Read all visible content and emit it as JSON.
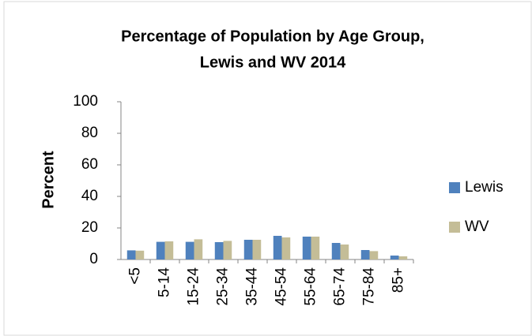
{
  "chart_data": {
    "type": "bar",
    "title": [
      "Percentage of Population by Age Group,",
      "Lewis and WV 2014"
    ],
    "y_label": "Percent",
    "categories": [
      "<5",
      "5-14",
      "15-24",
      "25-34",
      "35-44",
      "45-54",
      "55-64",
      "65-74",
      "75-84",
      "85+"
    ],
    "series": [
      {
        "name": "Lewis",
        "color": "#4f81bd",
        "values": [
          5.8,
          11.2,
          11.2,
          11,
          12.5,
          15,
          14.5,
          10.5,
          6,
          2.5
        ]
      },
      {
        "name": "WV",
        "color": "#c4bd97",
        "values": [
          5.6,
          11.5,
          12.8,
          11.8,
          12.5,
          14,
          14.5,
          9.5,
          5.3,
          2
        ]
      }
    ],
    "ylim": [
      0,
      100
    ],
    "yticks": [
      0,
      20,
      40,
      60,
      80,
      100
    ],
    "legend": "right"
  }
}
